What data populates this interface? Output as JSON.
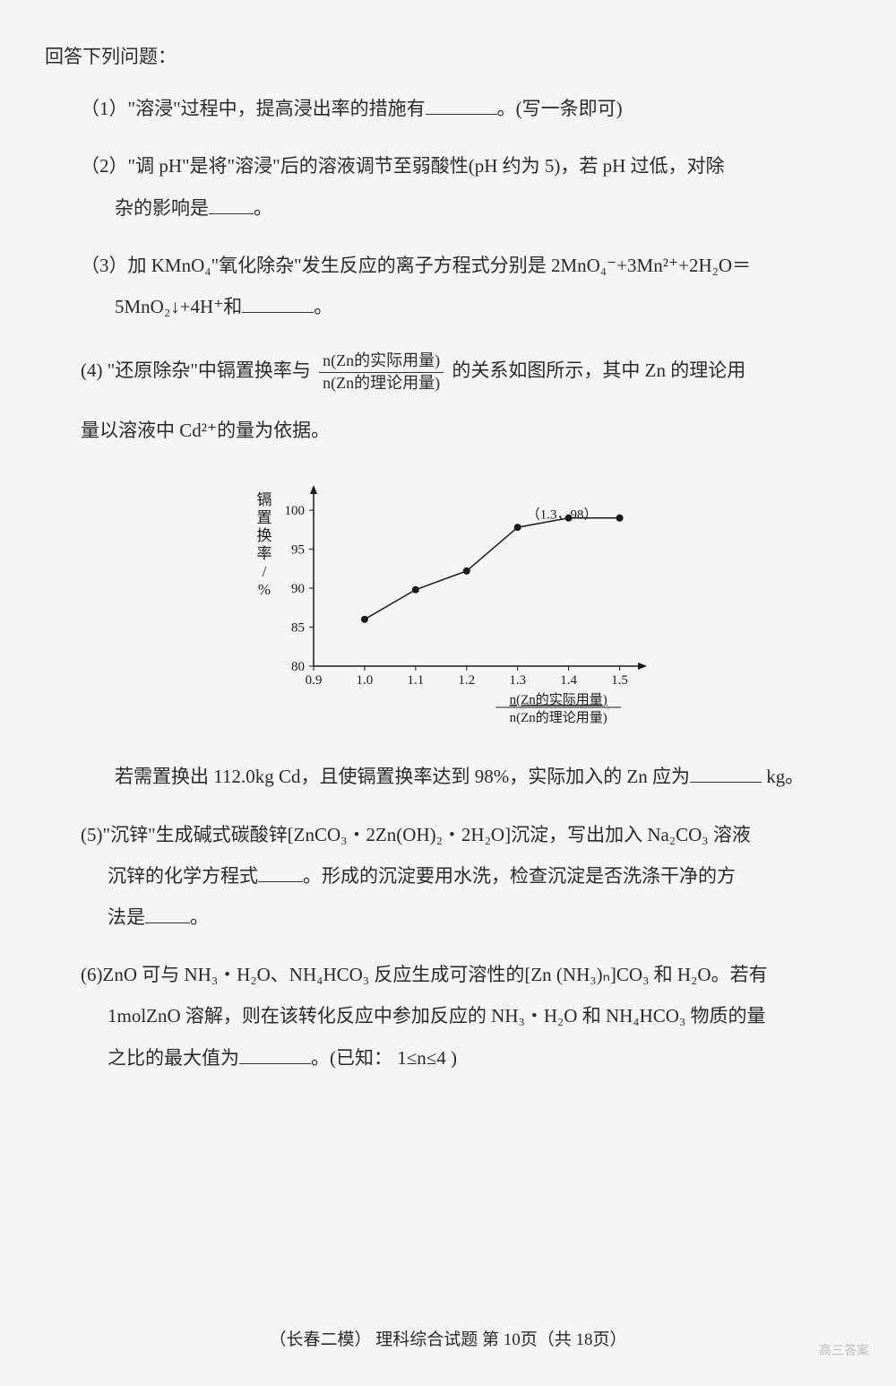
{
  "intro": "回答下列问题：",
  "q1": {
    "number": "（1）",
    "textBefore": "\"溶浸\"过程中，提高浸出率的措施有",
    "textAfter": "。(写一条即可)"
  },
  "q2": {
    "number": "（2）",
    "line1Before": "\"调 pH\"是将\"溶浸\"后的溶液调节至弱酸性(pH 约为 5)，若 pH 过低，对除",
    "line2Before": "杂的影响是",
    "line2After": "。"
  },
  "q3": {
    "number": "（3）",
    "line1": "加 KMnO₄\"氧化除杂\"发生反应的离子方程式分别是 2MnO₄⁻+3Mn²⁺+2H₂O＝",
    "line2Before": "5MnO₂↓+4H⁺和",
    "line2After": "。"
  },
  "q4": {
    "number": "(4)",
    "introBefore": "\"还原除杂\"中镉置换率与",
    "fracNum": "n(Zn的实际用量)",
    "fracDen": "n(Zn的理论用量)",
    "introAfter": "的关系如图所示，其中 Zn 的理论用",
    "intro2": "量以溶液中 Cd²⁺的量为依据。",
    "resultBefore": "若需置换出 112.0kg Cd，且使镉置换率达到 98%，实际加入的 Zn 应为",
    "resultAfter": " kg。"
  },
  "q5": {
    "number": "(5)",
    "line1": "\"沉锌\"生成碱式碳酸锌[ZnCO₃・2Zn(OH)₂・2H₂O]沉淀，写出加入 Na₂CO₃ 溶液",
    "line2Before": "沉锌的化学方程式",
    "line2Mid": "。形成的沉淀要用水洗，检查沉淀是否洗涤干净的方",
    "line3Before": "法是",
    "line3After": "。"
  },
  "q6": {
    "number": "(6)",
    "line1": "ZnO 可与 NH₃・H₂O、NH₄HCO₃ 反应生成可溶性的[Zn (NH₃)ₙ]CO₃ 和 H₂O。若有",
    "line2": "1molZnO 溶解，则在该转化反应中参加反应的 NH₃・H₂O 和 NH₄HCO₃ 物质的量",
    "line3Before": "之比的最大值为",
    "line3After": "。(已知：  1≤n≤4 )"
  },
  "chart": {
    "type": "line",
    "yLabel": "镉置换率/%",
    "xLabelNum": "n(Zn的实际用量)",
    "xLabelDen": "n(Zn的理论用量)",
    "annotation": "（1.3，98）",
    "xValues": [
      1.0,
      1.1,
      1.2,
      1.3,
      1.4,
      1.5
    ],
    "yValues": [
      86,
      89.8,
      92.2,
      97.8,
      99,
      99
    ],
    "xTicks": [
      0.9,
      1.0,
      1.1,
      1.2,
      1.3,
      1.4,
      1.5
    ],
    "yTicks": [
      80,
      85,
      90,
      95,
      100
    ],
    "xRange": [
      0.9,
      1.55
    ],
    "yRange": [
      80,
      103
    ],
    "marker_color": "#1a1a1a",
    "line_color": "#1a1a1a",
    "axis_color": "#1a1a1a",
    "background_color": "#f5f5f3",
    "marker_size": 4,
    "line_width": 1.5,
    "font_size": 15,
    "label_font_size": 17
  },
  "footer": "（长春二模）  理科综合试题  第 10页（共 18页）",
  "watermark": "高三答案"
}
